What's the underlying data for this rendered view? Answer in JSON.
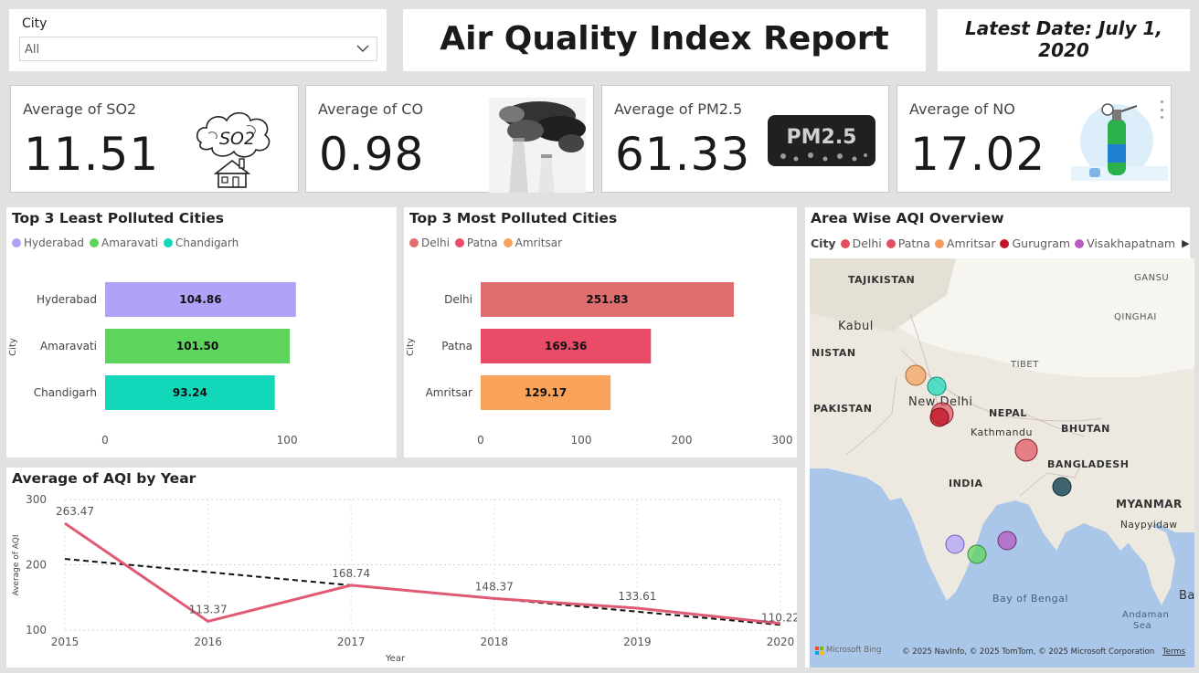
{
  "slicer": {
    "label": "City",
    "value": "All"
  },
  "header": {
    "title": "Air Quality Index Report"
  },
  "latest_date": "Latest Date: July 1, 2020",
  "kpis": [
    {
      "caption": "Average of SO2",
      "value": "11.51",
      "icon": "so2-cloud-house-icon"
    },
    {
      "caption": "Average of CO",
      "value": "0.98",
      "icon": "smokestack-photo"
    },
    {
      "caption": "Average of PM2.5",
      "value": "61.33",
      "icon": "pm25-badge"
    },
    {
      "caption": "Average of NO",
      "value": "17.02",
      "icon": "gas-cylinder-icon"
    }
  ],
  "pm_badge_text": "PM2.5",
  "so2_text": "SO2",
  "least": {
    "title": "Top 3 Least Polluted Cities",
    "axis_label": "City",
    "legend": [
      {
        "name": "Hyderabad",
        "color": "#b0a2f7"
      },
      {
        "name": "Amaravati",
        "color": "#5dd55d"
      },
      {
        "name": "Chandigarh",
        "color": "#13d7b9"
      }
    ]
  },
  "most": {
    "title": "Top 3 Most Polluted Cities",
    "axis_label": "City",
    "legend": [
      {
        "name": "Delhi",
        "color": "#df6e6e"
      },
      {
        "name": "Patna",
        "color": "#ea4c68"
      },
      {
        "name": "Amritsar",
        "color": "#f9a35a"
      }
    ]
  },
  "trend": {
    "title": "Average of AQI by Year"
  },
  "map": {
    "title": "Area Wise AQI Overview",
    "legend_label": "City",
    "legend": [
      {
        "name": "Delhi",
        "color": "#e2505f"
      },
      {
        "name": "Patna",
        "color": "#e2505f"
      },
      {
        "name": "Amritsar",
        "color": "#f49d5a"
      },
      {
        "name": "Gurugram",
        "color": "#c0182a"
      },
      {
        "name": "Visakhapatnam",
        "color": "#b95bc4"
      }
    ],
    "labels": {
      "tajikistan": "TAJIKISTAN",
      "kabul": "Kabul",
      "nistan": "NISTAN",
      "pakistan": "PAKISTAN",
      "new_delhi": "New Delhi",
      "nepal": "NEPAL",
      "kathmandu": "Kathmandu",
      "bhutan": "BHUTAN",
      "tibet": "TIBET",
      "gansu": "GANSU",
      "qinghai": "QINGHAI",
      "india": "INDIA",
      "bangladesh": "BANGLADESH",
      "myanmar": "MYANMAR",
      "naypyidaw": "Naypyidaw",
      "bay_of_bengal": "Bay of Bengal",
      "andaman": "Andaman",
      "sea": "Sea",
      "bar": "Bar"
    },
    "bing": "Microsoft Bing",
    "copyright": "© 2025 NavInfo, © 2025 TomTom, © 2025 Microsoft Corporation",
    "terms": "Terms"
  },
  "chart_data": [
    {
      "type": "bar",
      "title": "Top 3 Least Polluted Cities",
      "ylabel": "City",
      "categories": [
        "Hyderabad",
        "Amaravati",
        "Chandigarh"
      ],
      "values": [
        104.86,
        101.5,
        93.24
      ],
      "labels": [
        "104.86",
        "101.50",
        "93.24"
      ],
      "colors": [
        "#b0a2f7",
        "#5dd55d",
        "#13d7b9"
      ],
      "xlim": [
        0,
        115
      ],
      "xticks": [
        "0",
        "100"
      ]
    },
    {
      "type": "bar",
      "title": "Top 3 Most Polluted Cities",
      "ylabel": "City",
      "categories": [
        "Delhi",
        "Patna",
        "Amritsar"
      ],
      "values": [
        251.83,
        169.36,
        129.17
      ],
      "labels": [
        "251.83",
        "169.36",
        "129.17"
      ],
      "colors": [
        "#df6e6e",
        "#ea4c68",
        "#f9a35a"
      ],
      "xlim": [
        0,
        300
      ],
      "xticks": [
        "0",
        "100",
        "200",
        "300"
      ]
    },
    {
      "type": "line",
      "title": "Average of AQI by Year",
      "xlabel": "Year",
      "ylabel": "Average of AQI",
      "x": [
        "2015",
        "2016",
        "2017",
        "2018",
        "2019",
        "2020"
      ],
      "series": [
        {
          "values": [
            263.47,
            113.37,
            168.74,
            148.37,
            133.61,
            110.22
          ],
          "color": "#e05a74"
        }
      ],
      "point_labels": [
        "263.47",
        "113.37",
        "168.74",
        "148.37",
        "133.61",
        "110.22"
      ],
      "trend_line": [
        209,
        108
      ],
      "ylim": [
        100,
        300
      ],
      "yticks": [
        "100",
        "200",
        "300"
      ],
      "grid": true
    }
  ]
}
